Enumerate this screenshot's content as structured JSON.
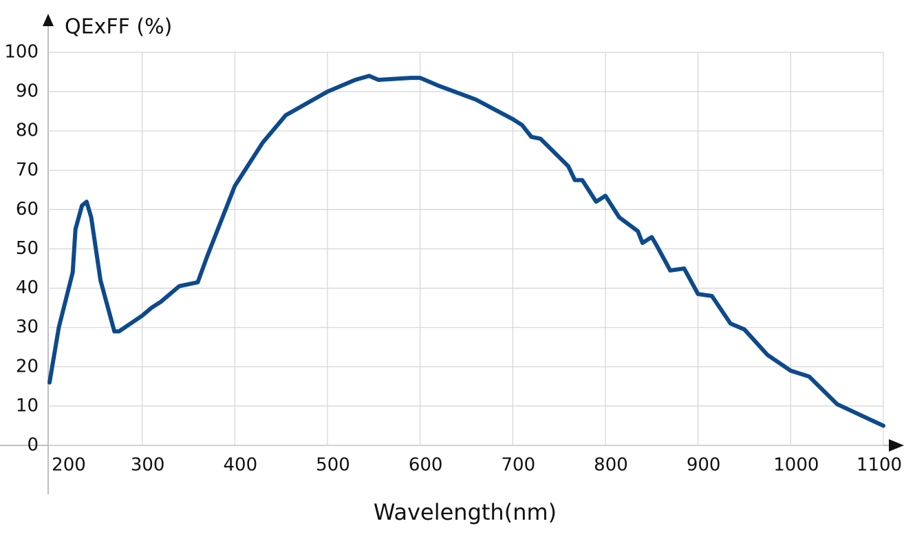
{
  "chart_data": {
    "type": "line",
    "title": "QExFF (%)",
    "x_label": "Wavelength(nm)",
    "x": [
      200,
      210,
      225,
      228,
      235,
      240,
      245,
      255,
      270,
      275,
      300,
      310,
      320,
      340,
      360,
      370,
      390,
      400,
      430,
      455,
      500,
      530,
      545,
      555,
      590,
      600,
      620,
      660,
      700,
      710,
      720,
      730,
      760,
      767,
      775,
      790,
      800,
      815,
      835,
      840,
      850,
      855,
      870,
      885,
      900,
      915,
      935,
      950,
      975,
      1000,
      1020,
      1050,
      1100
    ],
    "series": [
      {
        "name": "QExFF",
        "color": "#0d4a8c",
        "values": [
          16,
          30,
          44,
          55,
          61,
          62,
          58,
          42,
          29,
          29,
          33,
          35,
          36.5,
          40.5,
          41.5,
          48,
          60,
          66,
          77,
          84,
          90,
          93,
          94,
          93,
          93.5,
          93.5,
          91.5,
          88,
          83,
          81.5,
          78.5,
          78,
          71,
          67.5,
          67.5,
          62,
          63.5,
          58,
          54.5,
          51.5,
          53,
          51,
          44.5,
          45,
          38.5,
          38,
          31,
          29.5,
          23,
          19,
          17.5,
          10.5,
          5
        ]
      }
    ],
    "xlim": [
      200,
      1100
    ],
    "ylim": [
      0,
      100
    ],
    "xticks": [
      200,
      300,
      400,
      500,
      600,
      700,
      800,
      900,
      1000,
      1100
    ],
    "yticks": [
      0,
      10,
      20,
      30,
      40,
      50,
      60,
      70,
      80,
      90,
      100
    ],
    "grid": true
  }
}
